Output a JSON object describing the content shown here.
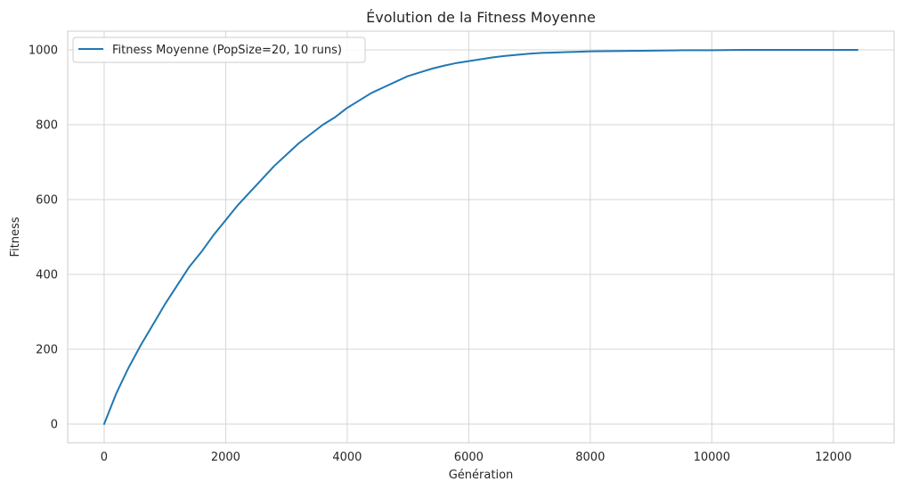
{
  "chart_data": {
    "type": "line",
    "title": "Évolution de la Fitness Moyenne",
    "xlabel": "Génération",
    "ylabel": "Fitness",
    "xlim": [
      -600,
      13000
    ],
    "ylim": [
      -50,
      1050
    ],
    "xticks": [
      0,
      2000,
      4000,
      6000,
      8000,
      10000,
      12000
    ],
    "xtick_labels": [
      "0",
      "2000",
      "4000",
      "6000",
      "8000",
      "10000",
      "12000"
    ],
    "yticks": [
      0,
      200,
      400,
      600,
      800,
      1000
    ],
    "ytick_labels": [
      "0",
      "200",
      "400",
      "600",
      "800",
      "1000"
    ],
    "grid": true,
    "legend_position": "top-left",
    "series": [
      {
        "name": "Fitness Moyenne (PopSize=20, 10 runs)",
        "color": "#1f77b4",
        "x": [
          0,
          200,
          400,
          600,
          800,
          1000,
          1200,
          1400,
          1600,
          1800,
          2000,
          2200,
          2400,
          2600,
          2800,
          3000,
          3200,
          3400,
          3600,
          3800,
          4000,
          4200,
          4400,
          4600,
          4800,
          5000,
          5200,
          5400,
          5600,
          5800,
          6000,
          6200,
          6400,
          6600,
          6800,
          7000,
          7200,
          7400,
          7600,
          7800,
          8000,
          8500,
          9000,
          9500,
          10000,
          10500,
          11000,
          11500,
          12000,
          12400
        ],
        "y": [
          0,
          82,
          150,
          210,
          265,
          320,
          370,
          420,
          460,
          505,
          545,
          585,
          620,
          655,
          690,
          720,
          750,
          775,
          800,
          820,
          845,
          865,
          885,
          900,
          915,
          930,
          940,
          950,
          958,
          965,
          970,
          975,
          980,
          984,
          987,
          990,
          992,
          993,
          994,
          995,
          996,
          997,
          998,
          999,
          999,
          1000,
          1000,
          1000,
          1000,
          1000
        ]
      }
    ]
  }
}
